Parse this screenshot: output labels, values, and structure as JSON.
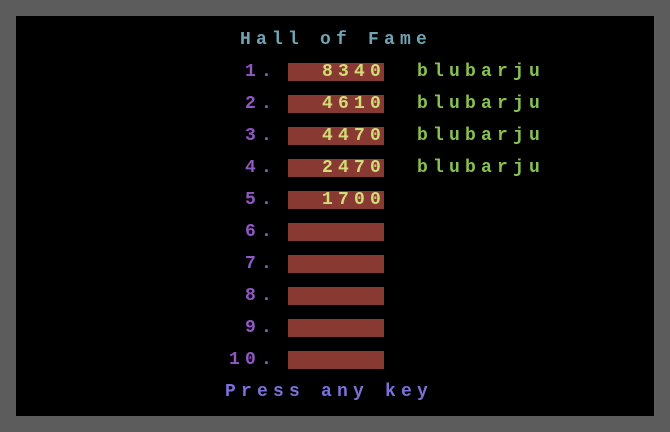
{
  "title": "Hall of Fame",
  "entries": [
    {
      "rank": "1.",
      "score": 8340,
      "name": "blubarju"
    },
    {
      "rank": "2.",
      "score": 4610,
      "name": "blubarju"
    },
    {
      "rank": "3.",
      "score": 4470,
      "name": "blubarju"
    },
    {
      "rank": "4.",
      "score": 2470,
      "name": "blubarju"
    },
    {
      "rank": "5.",
      "score": 1700
    },
    {
      "rank": "6."
    },
    {
      "rank": "7."
    },
    {
      "rank": "8."
    },
    {
      "rank": "9."
    },
    {
      "rank": "10."
    }
  ],
  "footer": "Press any key"
}
